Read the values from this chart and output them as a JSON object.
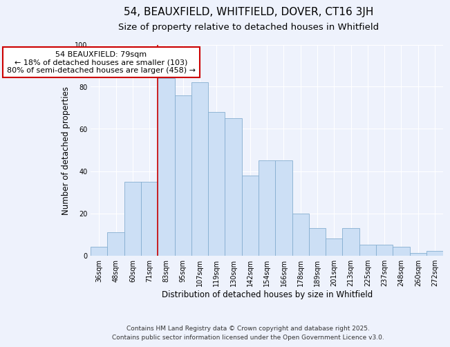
{
  "title": "54, BEAUXFIELD, WHITFIELD, DOVER, CT16 3JH",
  "subtitle": "Size of property relative to detached houses in Whitfield",
  "xlabel": "Distribution of detached houses by size in Whitfield",
  "ylabel": "Number of detached properties",
  "footer_line1": "Contains HM Land Registry data © Crown copyright and database right 2025.",
  "footer_line2": "Contains public sector information licensed under the Open Government Licence v3.0.",
  "annotation_line1": "54 BEAUXFIELD: 79sqm",
  "annotation_line2": "← 18% of detached houses are smaller (103)",
  "annotation_line3": "80% of semi-detached houses are larger (458) →",
  "bar_labels": [
    "36sqm",
    "48sqm",
    "60sqm",
    "71sqm",
    "83sqm",
    "95sqm",
    "107sqm",
    "119sqm",
    "130sqm",
    "142sqm",
    "154sqm",
    "166sqm",
    "178sqm",
    "189sqm",
    "201sqm",
    "213sqm",
    "225sqm",
    "237sqm",
    "248sqm",
    "260sqm",
    "272sqm"
  ],
  "bar_values": [
    4,
    11,
    35,
    35,
    84,
    76,
    82,
    68,
    65,
    38,
    45,
    45,
    20,
    13,
    8,
    13,
    5,
    5,
    4,
    1,
    2
  ],
  "bar_color": "#ccdff5",
  "bar_edge_color": "#85aed0",
  "vline_index": 4,
  "vline_color": "#cc0000",
  "ylim": [
    0,
    100
  ],
  "yticks": [
    0,
    20,
    40,
    60,
    80,
    100
  ],
  "background_color": "#eef2fc",
  "grid_color": "#ffffff",
  "annotation_box_facecolor": "#ffffff",
  "annotation_box_edgecolor": "#cc0000",
  "title_fontsize": 11,
  "subtitle_fontsize": 9.5,
  "axis_label_fontsize": 8.5,
  "tick_fontsize": 7,
  "annotation_fontsize": 8,
  "footer_fontsize": 6.5
}
